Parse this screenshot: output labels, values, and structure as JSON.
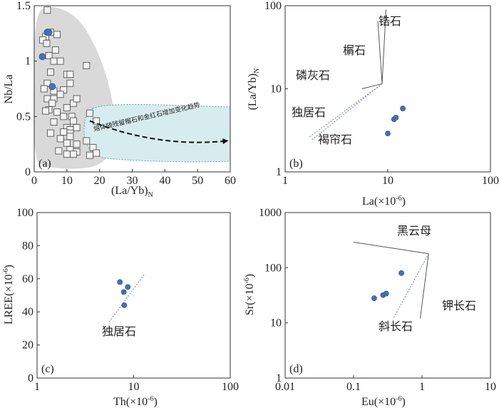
{
  "chart_data": [
    {
      "panel": "(a)",
      "type": "scatter",
      "xlabel": "(La/Yb)",
      "xlabel_sub": "N",
      "ylabel": "Nb/La",
      "xscale": "linear",
      "yscale": "linear",
      "xlim": [
        0,
        60
      ],
      "ylim": [
        0,
        1.5
      ],
      "xticks": [
        0,
        10,
        20,
        30,
        40,
        50,
        60
      ],
      "xtick_labels": [
        "0",
        "10",
        "20",
        "30",
        "40",
        "50",
        "60"
      ],
      "yticks": [
        0,
        0.5,
        1,
        1.5
      ],
      "ytick_labels": [
        "0",
        "0.5",
        "1",
        "1.5"
      ],
      "series": [
        {
          "name": "open-squares",
          "marker": "square-open",
          "points": [
            [
              4,
              1.46
            ],
            [
              5,
              1.26
            ],
            [
              3.5,
              1.22
            ],
            [
              2.6,
              1.19
            ],
            [
              3.8,
              1.16
            ],
            [
              7,
              1.24
            ],
            [
              6.5,
              1.1
            ],
            [
              4.5,
              1.05
            ],
            [
              6,
              1.0
            ],
            [
              8,
              1.0
            ],
            [
              16,
              0.96
            ],
            [
              5,
              0.9
            ],
            [
              4,
              0.8
            ],
            [
              10,
              0.88
            ],
            [
              11,
              0.8
            ],
            [
              11,
              0.88
            ],
            [
              3,
              0.75
            ],
            [
              6,
              0.73
            ],
            [
              9,
              0.74
            ],
            [
              4,
              0.66
            ],
            [
              6,
              0.66
            ],
            [
              8,
              0.7
            ],
            [
              5.5,
              0.62
            ],
            [
              12,
              0.62
            ],
            [
              13,
              0.66
            ],
            [
              10,
              0.58
            ],
            [
              4.5,
              0.56
            ],
            [
              3.5,
              0.55
            ],
            [
              7,
              0.54
            ],
            [
              17,
              0.53
            ],
            [
              9,
              0.5
            ],
            [
              11.5,
              0.5
            ],
            [
              6,
              0.45
            ],
            [
              12,
              0.46
            ],
            [
              19,
              0.46
            ],
            [
              10,
              0.4
            ],
            [
              11,
              0.38
            ],
            [
              13,
              0.4
            ],
            [
              9,
              0.36
            ],
            [
              11,
              0.35
            ],
            [
              5,
              0.35
            ],
            [
              11,
              0.32
            ],
            [
              8,
              0.3
            ],
            [
              16,
              0.28
            ],
            [
              10,
              0.26
            ],
            [
              13,
              0.25
            ],
            [
              18,
              0.22
            ],
            [
              7.5,
              0.19
            ],
            [
              11,
              0.2
            ],
            [
              13,
              0.18
            ],
            [
              19,
              0.17
            ],
            [
              10,
              0.16
            ],
            [
              12,
              0.16
            ],
            [
              17,
              0.15
            ]
          ]
        },
        {
          "name": "filled-circles",
          "marker": "circle-filled",
          "color": "#4a6fb3",
          "points": [
            [
              4,
              1.26
            ],
            [
              4.5,
              1.26
            ],
            [
              2.5,
              1.04
            ],
            [
              5.5,
              0.77
            ]
          ]
        }
      ],
      "regions": [
        {
          "name": "grey-field",
          "color": "#d9d9d9"
        },
        {
          "name": "cyan-field",
          "color": "#d7ecee"
        }
      ],
      "annotation": "熔体随残留榴石和金红石增加变化趋势",
      "trend_arrow": {
        "from": [
          17,
          0.46
        ],
        "to": [
          59,
          0.28
        ]
      }
    },
    {
      "panel": "(b)",
      "type": "scatter",
      "xlabel": "La(×10",
      "xlabel_sup": "-6",
      "xlabel_end": ")",
      "ylabel": "(La/Yb)",
      "ylabel_sub": "N",
      "xscale": "log",
      "yscale": "log",
      "xlim": [
        1,
        100
      ],
      "ylim": [
        1,
        100
      ],
      "xticks": [
        1,
        10,
        100
      ],
      "xtick_labels": [
        "1",
        "10",
        "100"
      ],
      "yticks": [
        1,
        10,
        100
      ],
      "ytick_labels": [
        "1",
        "10",
        "100"
      ],
      "series": [
        {
          "name": "filled-circles",
          "marker": "circle-filled",
          "color": "#4a6fb3",
          "points": [
            [
              10,
              2.9
            ],
            [
              11.5,
              4.3
            ],
            [
              12,
              4.5
            ],
            [
              14,
              5.8
            ]
          ]
        }
      ],
      "vector_origin": [
        8.8,
        11.5
      ],
      "vectors": [
        {
          "label": "锆石",
          "to": [
            9.6,
            90
          ]
        },
        {
          "label": "榍石",
          "to": [
            8.0,
            65
          ]
        },
        {
          "label": "磷灰石",
          "to": [
            5.6,
            10
          ]
        },
        {
          "label": "独居石",
          "to": [
            1.7,
            2.6
          ],
          "style": "dashed"
        },
        {
          "label": "褐帘石",
          "to": [
            1.8,
            2.4
          ],
          "style": "dashed"
        }
      ]
    },
    {
      "panel": "(c)",
      "type": "scatter",
      "xlabel": "Th(×10",
      "xlabel_sup": "-6",
      "xlabel_end": ")",
      "ylabel": "LREE(×10",
      "ylabel_sup": "-6",
      "ylabel_end": ")",
      "xscale": "log",
      "yscale": "linear",
      "xlim": [
        1,
        100
      ],
      "ylim": [
        0,
        100
      ],
      "xticks": [
        1,
        10,
        100
      ],
      "xtick_labels": [
        "1",
        "10",
        "100"
      ],
      "yticks": [
        0,
        20,
        40,
        60,
        80,
        100
      ],
      "ytick_labels": [
        "0",
        "20",
        "40",
        "60",
        "80",
        "100"
      ],
      "series": [
        {
          "name": "filled-circles",
          "marker": "circle-filled",
          "color": "#4a6fb3",
          "points": [
            [
              7.2,
              58
            ],
            [
              8.7,
              55
            ],
            [
              7.9,
              52
            ],
            [
              8.0,
              44
            ]
          ]
        }
      ],
      "vectors": [
        {
          "label": "独居石",
          "from": [
            5.6,
            34
          ],
          "to": [
            13.0,
            63
          ],
          "style": "dashed"
        }
      ]
    },
    {
      "panel": "(d)",
      "type": "scatter",
      "xlabel": "Eu(×10",
      "xlabel_sup": "-6",
      "xlabel_end": ")",
      "ylabel": "Sr(×10",
      "ylabel_sup": "-6",
      "ylabel_end": ")",
      "xscale": "log",
      "yscale": "log",
      "xlim": [
        0.01,
        10
      ],
      "ylim": [
        1,
        1000
      ],
      "xticks": [
        0.01,
        0.1,
        1,
        10
      ],
      "xtick_labels": [
        "0.01",
        "0.1",
        "1",
        "10"
      ],
      "yticks": [
        1,
        10,
        100,
        1000
      ],
      "ytick_labels": [
        "1",
        "10",
        "100",
        "1000"
      ],
      "series": [
        {
          "name": "filled-circles",
          "marker": "circle-filled",
          "color": "#4a6fb3",
          "points": [
            [
              0.2,
              28
            ],
            [
              0.27,
              32
            ],
            [
              0.3,
              34
            ],
            [
              0.5,
              80
            ]
          ]
        }
      ],
      "vector_origin": [
        1.25,
        180
      ],
      "vectors": [
        {
          "label": "黑云母",
          "to": [
            0.1,
            290
          ]
        },
        {
          "label": "钾长石",
          "to": [
            0.94,
            12
          ]
        },
        {
          "label": "斜长石",
          "to": [
            0.38,
            12
          ],
          "style": "dashed"
        }
      ]
    }
  ]
}
